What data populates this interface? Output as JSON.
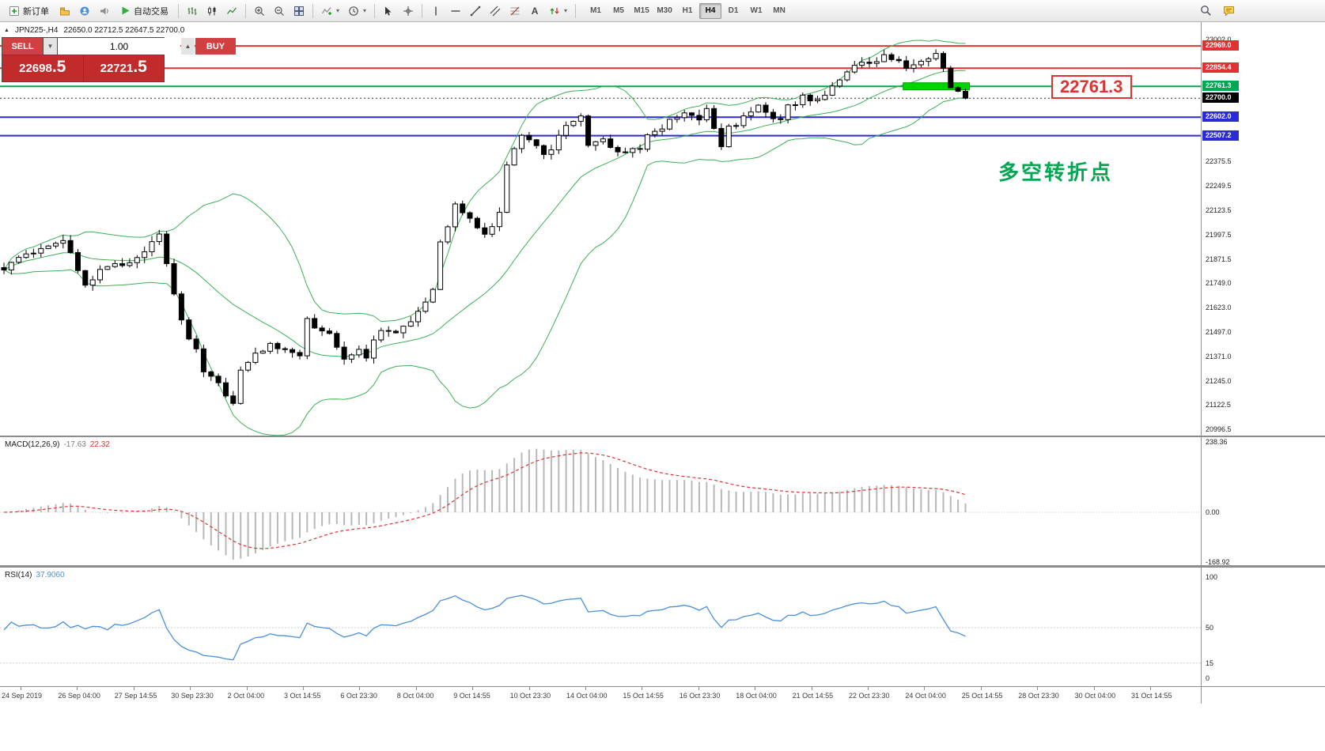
{
  "toolbar": {
    "new_order_label": "新订单",
    "auto_trading_label": "自动交易",
    "text_tool_glyph": "A",
    "timeframes": [
      "M1",
      "M5",
      "M15",
      "M30",
      "H1",
      "H4",
      "D1",
      "W1",
      "MN"
    ],
    "active_timeframe": "H4"
  },
  "chart_header": {
    "collapse_icon": "▲",
    "symbol": "JPN225-,H4",
    "ohlc": "22650.0 22712.5 22647.5 22700.0"
  },
  "trade_panel": {
    "sell_label": "SELL",
    "buy_label": "BUY",
    "volume": "1.00",
    "sell_price_main": "22698",
    "sell_price_frac": ".5",
    "buy_price_main": "22721",
    "buy_price_frac": ".5"
  },
  "annotations": {
    "pivot_price_label": "22761.3",
    "note_text": "多空转折点"
  },
  "colors": {
    "resistance": "#e03232",
    "pivot": "#00a651",
    "support": "#2a2ad8",
    "current": "#000000",
    "highlight": "#00d500",
    "bollinger": "#3cb054",
    "macd_histogram": "#b8b8b8",
    "macd_signal": "#e03232",
    "rsi_line": "#4a90d9"
  },
  "price_axis": {
    "plain_labels": [
      {
        "text": "23002.0",
        "price": 23002.0
      },
      {
        "text": "22375.5",
        "price": 22375.5
      },
      {
        "text": "22249.5",
        "price": 22249.5
      },
      {
        "text": "22123.5",
        "price": 22123.5
      },
      {
        "text": "21997.5",
        "price": 21997.5
      },
      {
        "text": "21871.5",
        "price": 21871.5
      },
      {
        "text": "21749.0",
        "price": 21749.0
      },
      {
        "text": "21623.0",
        "price": 21623.0
      },
      {
        "text": "21497.0",
        "price": 21497.0
      },
      {
        "text": "21371.0",
        "price": 21371.0
      },
      {
        "text": "21245.0",
        "price": 21245.0
      },
      {
        "text": "21122.5",
        "price": 21122.5
      },
      {
        "text": "20996.5",
        "price": 20996.5
      }
    ],
    "level_labels": [
      {
        "text": "22969.0",
        "price": 22969.0,
        "bg": "#e03232"
      },
      {
        "text": "22854.4",
        "price": 22854.4,
        "bg": "#e03232"
      },
      {
        "text": "22761.3",
        "price": 22761.3,
        "bg": "#00a651"
      },
      {
        "text": "22700.0",
        "price": 22700.0,
        "bg": "#000000"
      },
      {
        "text": "22602.0",
        "price": 22602.0,
        "bg": "#2a2ad8"
      },
      {
        "text": "22507.2",
        "price": 22507.2,
        "bg": "#2a2ad8"
      }
    ]
  },
  "macd_panel": {
    "name": "MACD(12,26,9)",
    "main_value": "-17.63",
    "signal_value": "22.32",
    "axis_labels": [
      {
        "text": "238.36",
        "value": 238.36
      },
      {
        "text": "0.00",
        "value": 0
      },
      {
        "text": "-168.92",
        "value": -168.92
      }
    ]
  },
  "rsi_panel": {
    "name": "RSI(14)",
    "value": "37.9060",
    "axis_labels": [
      {
        "text": "100",
        "value": 100
      },
      {
        "text": "50",
        "value": 50
      },
      {
        "text": "15",
        "value": 15
      },
      {
        "text": "0",
        "value": 0
      }
    ]
  },
  "time_axis": [
    "24 Sep 2019",
    "26 Sep 04:00",
    "27 Sep 14:55",
    "30 Sep 23:30",
    "2 Oct 04:00",
    "3 Oct 14:55",
    "6 Oct 23:30",
    "8 Oct 04:00",
    "9 Oct 14:55",
    "10 Oct 23:30",
    "14 Oct 04:00",
    "15 Oct 14:55",
    "16 Oct 23:30",
    "18 Oct 04:00",
    "21 Oct 14:55",
    "22 Oct 23:30",
    "24 Oct 04:00",
    "25 Oct 14:55",
    "28 Oct 23:30",
    "30 Oct 04:00",
    "31 Oct 14:55"
  ],
  "chart_data": {
    "type": "candlestick",
    "symbol": "JPN225-",
    "timeframe": "H4",
    "current_bar_ohlc": {
      "open": 22650.0,
      "high": 22712.5,
      "low": 22647.5,
      "close": 22700.0
    },
    "candle_count": 131,
    "price_axis_range": [
      20996.5,
      23002.0
    ],
    "close_keypoints": [
      [
        0,
        21820
      ],
      [
        3,
        21900
      ],
      [
        6,
        21930
      ],
      [
        8,
        21980
      ],
      [
        10,
        21820
      ],
      [
        11,
        21750
      ],
      [
        14,
        21830
      ],
      [
        16,
        21850
      ],
      [
        18,
        21880
      ],
      [
        21,
        21990
      ],
      [
        22,
        21850
      ],
      [
        24,
        21550
      ],
      [
        26,
        21400
      ],
      [
        27,
        21300
      ],
      [
        29,
        21250
      ],
      [
        31,
        21120
      ],
      [
        32,
        21300
      ],
      [
        34,
        21380
      ],
      [
        36,
        21450
      ],
      [
        38,
        21400
      ],
      [
        40,
        21380
      ],
      [
        41,
        21550
      ],
      [
        43,
        21500
      ],
      [
        44,
        21480
      ],
      [
        46,
        21350
      ],
      [
        48,
        21400
      ],
      [
        49,
        21380
      ],
      [
        51,
        21520
      ],
      [
        53,
        21480
      ],
      [
        56,
        21600
      ],
      [
        58,
        21700
      ],
      [
        59,
        21950
      ],
      [
        61,
        22150
      ],
      [
        62,
        22100
      ],
      [
        64,
        22050
      ],
      [
        65,
        22000
      ],
      [
        67,
        22100
      ],
      [
        68,
        22350
      ],
      [
        70,
        22500
      ],
      [
        72,
        22450
      ],
      [
        73,
        22400
      ],
      [
        75,
        22500
      ],
      [
        76,
        22550
      ],
      [
        78,
        22600
      ],
      [
        79,
        22450
      ],
      [
        81,
        22480
      ],
      [
        82,
        22450
      ],
      [
        84,
        22420
      ],
      [
        86,
        22450
      ],
      [
        87,
        22500
      ],
      [
        89,
        22550
      ],
      [
        90,
        22580
      ],
      [
        92,
        22620
      ],
      [
        94,
        22600
      ],
      [
        95,
        22650
      ],
      [
        97,
        22450
      ],
      [
        98,
        22550
      ],
      [
        100,
        22600
      ],
      [
        102,
        22650
      ],
      [
        103,
        22620
      ],
      [
        105,
        22600
      ],
      [
        106,
        22650
      ],
      [
        108,
        22700
      ],
      [
        110,
        22680
      ],
      [
        111,
        22720
      ],
      [
        113,
        22780
      ],
      [
        114,
        22850
      ],
      [
        116,
        22900
      ],
      [
        118,
        22880
      ],
      [
        119,
        22920
      ],
      [
        121,
        22900
      ],
      [
        122,
        22850
      ],
      [
        124,
        22880
      ],
      [
        126,
        22920
      ],
      [
        127,
        22850
      ],
      [
        128,
        22750
      ],
      [
        129,
        22720
      ],
      [
        130,
        22700
      ]
    ],
    "levels": {
      "resistance": [
        22969.0,
        22854.4
      ],
      "pivot": 22761.3,
      "current_price": 22700.0,
      "support": [
        22602.0,
        22507.2
      ]
    },
    "highlight_zone": {
      "price": 22761.3,
      "start_index": 122,
      "end_index": 130
    },
    "indicators": {
      "bollinger_bands": {
        "period": 20,
        "deviation": 2
      },
      "macd": {
        "fast": 12,
        "slow": 26,
        "signal": 9,
        "current_main": -17.63,
        "current_signal": 22.32,
        "axis_max": 238.36,
        "axis_min": -168.92
      },
      "rsi": {
        "period": 14,
        "current": 37.906,
        "scale": [
          0,
          100
        ]
      }
    }
  }
}
